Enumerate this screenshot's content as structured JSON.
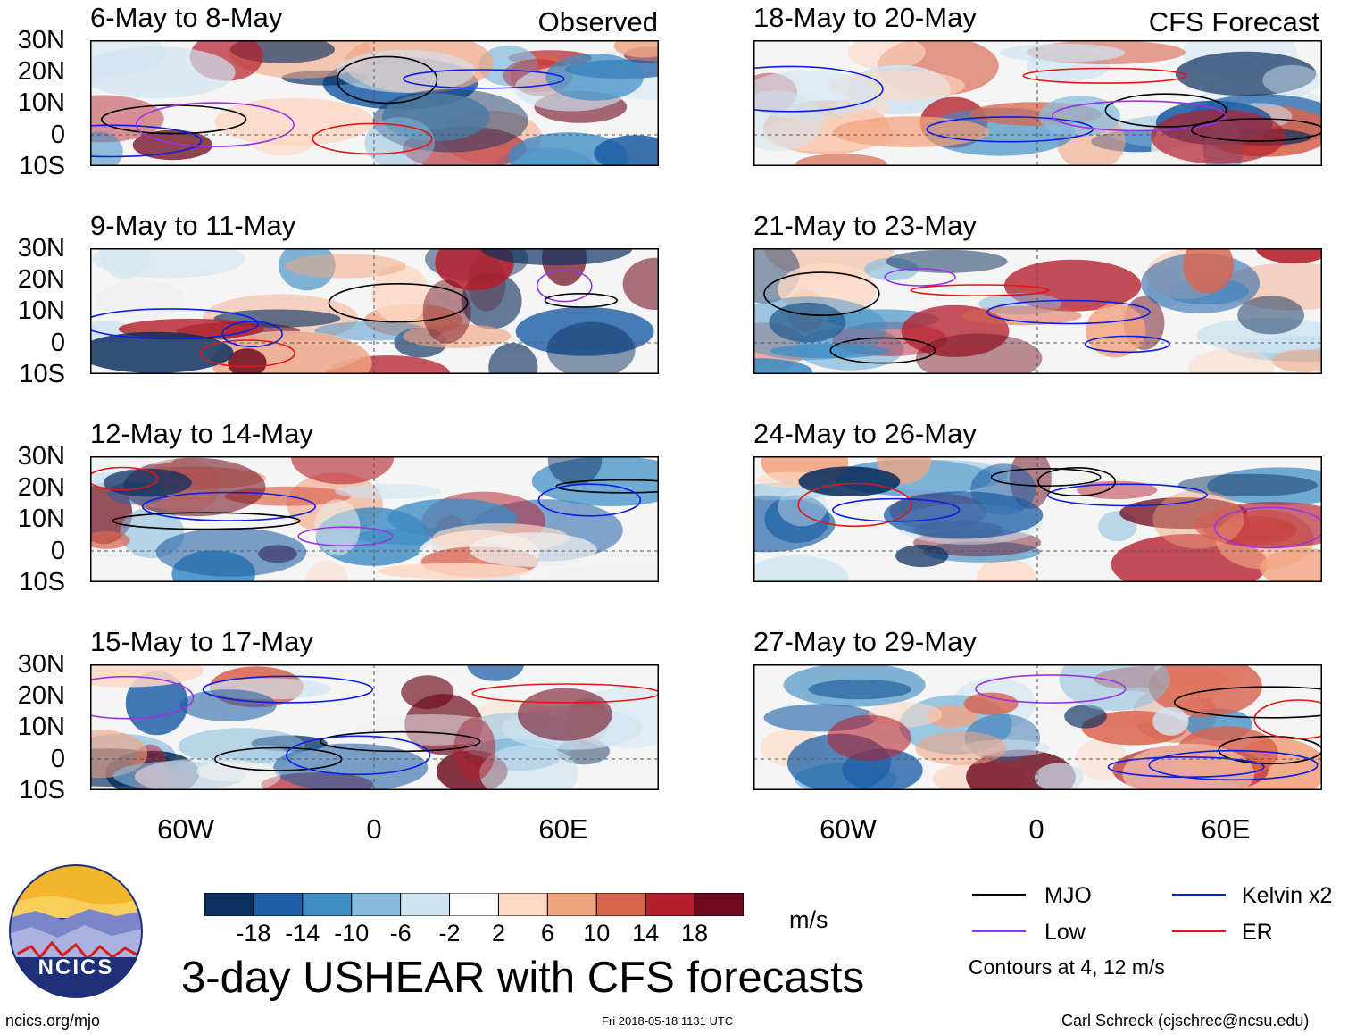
{
  "main_title": "3-day USHEAR with CFS forecasts",
  "column_labels": {
    "observed": "Observed",
    "forecast": "CFS Forecast"
  },
  "panels": [
    {
      "id": "p1",
      "title": "6-May to 8-May",
      "column": "observed"
    },
    {
      "id": "p2",
      "title": "9-May to 11-May",
      "column": "observed"
    },
    {
      "id": "p3",
      "title": "12-May to 14-May",
      "column": "observed"
    },
    {
      "id": "p4",
      "title": "15-May to 17-May",
      "column": "observed"
    },
    {
      "id": "p5",
      "title": "18-May to 20-May",
      "column": "forecast"
    },
    {
      "id": "p6",
      "title": "21-May to 23-May",
      "column": "forecast"
    },
    {
      "id": "p7",
      "title": "24-May to 26-May",
      "column": "forecast"
    },
    {
      "id": "p8",
      "title": "27-May to 29-May",
      "column": "forecast"
    }
  ],
  "lat_labels": [
    "30N",
    "20N",
    "10N",
    "0",
    "10S"
  ],
  "lon_labels": [
    "60W",
    "0",
    "60E"
  ],
  "colorbar": {
    "unit": "m/s",
    "tick_labels": [
      "-18",
      "-14",
      "-10",
      "-6",
      "-2",
      "2",
      "6",
      "10",
      "14",
      "18"
    ],
    "colors": [
      "#0b2f5e",
      "#1e5fa6",
      "#3d8cc4",
      "#88bcde",
      "#cfe4f1",
      "#ffffff",
      "#fdd8c4",
      "#f2a481",
      "#d9644e",
      "#b41f2c",
      "#6e0a1e"
    ]
  },
  "legend": {
    "items": [
      {
        "label": "MJO",
        "color": "#000000"
      },
      {
        "label": "Kelvin x2",
        "color": "#0a1ee6"
      },
      {
        "label": "Low",
        "color": "#9a32e6"
      },
      {
        "label": "ER",
        "color": "#e61414"
      }
    ],
    "note": "Contours at 4, 12 m/s"
  },
  "logo_text": "NCICS",
  "footer": {
    "url": "ncics.org/mjo",
    "timestamp": "Fri 2018-05-18 1131 UTC",
    "credit": "Carl Schreck (cjschrec@ncsu.edu)"
  }
}
